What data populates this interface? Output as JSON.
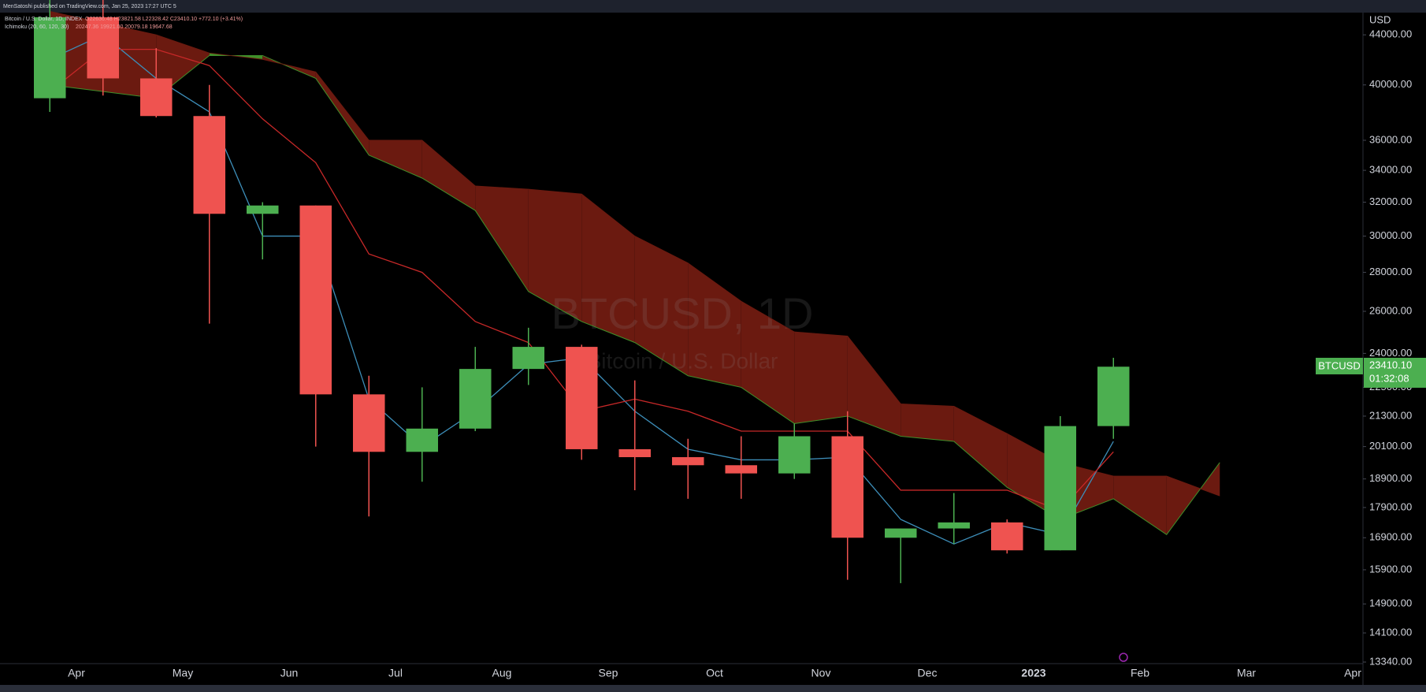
{
  "header": {
    "published": "MenSatoshi published on TradingView.com, Jan 25, 2023 17:27 UTC 5"
  },
  "chart_data": {
    "type": "candlestick",
    "legend": {
      "symbol": "Bitcoin / U.S. Dollar, 1D, INDEX",
      "ohlc": "O22636.48 H23821.58 L22328.42 C23410.10 +772.10 (+3.41%)",
      "indicator": "Ichimoku (20, 60, 120, 30)",
      "indicator_values": "20247.36 19921.00 20079.18 19647.68"
    },
    "watermark": {
      "title": "BTCUSD, 1D",
      "subtitle": "Bitcoin / U.S. Dollar"
    },
    "y_axis_label": "USD",
    "log_scale": true,
    "grid": false,
    "ylim": [
      13300,
      45900
    ],
    "yticks": [
      {
        "value": 44000,
        "label": "44000.00"
      },
      {
        "value": 40000,
        "label": "40000.00"
      },
      {
        "value": 36000,
        "label": "36000.00"
      },
      {
        "value": 34000,
        "label": "34000.00"
      },
      {
        "value": 32000,
        "label": "32000.00"
      },
      {
        "value": 30000,
        "label": "30000.00"
      },
      {
        "value": 28000,
        "label": "28000.00"
      },
      {
        "value": 26000,
        "label": "26000.00"
      },
      {
        "value": 24000,
        "label": "24000.00"
      },
      {
        "value": 22500,
        "label": "22500.00"
      },
      {
        "value": 21300,
        "label": "21300.00"
      },
      {
        "value": 20100,
        "label": "20100.00"
      },
      {
        "value": 18900,
        "label": "18900.00"
      },
      {
        "value": 17900,
        "label": "17900.00"
      },
      {
        "value": 16900,
        "label": "16900.00"
      },
      {
        "value": 15900,
        "label": "15900.00"
      },
      {
        "value": 14900,
        "label": "14900.00"
      },
      {
        "value": 14100,
        "label": "14100.00"
      },
      {
        "value": 13340,
        "label": "13340.00"
      }
    ],
    "categories": [
      null,
      "Apr",
      null,
      "May",
      null,
      "Jun",
      null,
      "Jul",
      null,
      "Aug",
      null,
      "Sep",
      null,
      "Oct",
      null,
      "Nov",
      null,
      "Dec",
      null,
      "2023",
      null,
      "Feb",
      null,
      "Mar",
      null,
      "Apr"
    ],
    "open": [
      39000,
      45500,
      40500,
      37700,
      31300,
      31800,
      22200,
      19900,
      20800,
      23300,
      24300,
      20000,
      19700,
      19400,
      19100,
      20500,
      16900,
      17200,
      17400,
      16500,
      20900,
      null,
      null,
      null,
      null,
      null
    ],
    "high": [
      48000,
      47400,
      42900,
      40000,
      32000,
      31800,
      23000,
      22500,
      24300,
      25200,
      24400,
      22800,
      20400,
      20500,
      21000,
      21500,
      17200,
      18400,
      17500,
      21300,
      23800,
      null,
      null,
      null,
      null,
      null
    ],
    "low": [
      38000,
      39200,
      37600,
      25400,
      28700,
      20100,
      17600,
      18800,
      20700,
      22600,
      19600,
      18500,
      18200,
      18200,
      18900,
      15600,
      15500,
      16700,
      16400,
      16500,
      20400,
      null,
      null,
      null,
      null,
      null
    ],
    "close": [
      45500,
      40500,
      37700,
      31300,
      31800,
      22200,
      19900,
      20800,
      23300,
      24300,
      20000,
      19700,
      19400,
      19100,
      20500,
      16900,
      17200,
      17400,
      16500,
      20900,
      23400,
      null,
      null,
      null,
      null,
      null
    ],
    "ichimoku": {
      "conversion": [
        42000,
        44000,
        40500,
        38000,
        30000,
        30000,
        22000,
        20100,
        21500,
        23500,
        23800,
        21500,
        20000,
        19600,
        19600,
        19700,
        17500,
        16700,
        17400,
        17000,
        20300,
        null,
        null,
        null,
        null,
        null
      ],
      "base": [
        39500,
        42800,
        42800,
        41500,
        37500,
        34500,
        29000,
        28000,
        25500,
        24500,
        21500,
        22000,
        21500,
        20700,
        20700,
        20700,
        18500,
        18500,
        18500,
        17800,
        19900,
        null,
        null,
        null,
        null,
        null
      ],
      "span_a": [
        40000,
        39500,
        39000,
        42300,
        42300,
        40500,
        35000,
        33500,
        31500,
        27000,
        25500,
        24500,
        23000,
        22500,
        21000,
        21300,
        20500,
        20300,
        18600,
        17500,
        18200,
        17000,
        19500,
        null,
        null,
        null
      ],
      "span_b": [
        46000,
        45000,
        44000,
        42500,
        42000,
        41000,
        36000,
        36000,
        33000,
        32800,
        32500,
        30000,
        28500,
        26500,
        25000,
        24800,
        21800,
        21700,
        20600,
        19500,
        19000,
        19000,
        18300,
        null,
        null,
        null
      ]
    },
    "up_color": "#4caf50",
    "down_color": "#ef5350",
    "conversion_color": "#3d8eb9",
    "base_color": "#c62828",
    "cloud_bear_color": "#6b1a10",
    "cloud_bull_color": "#3f8f2a",
    "price_tag": {
      "symbol": "BTCUSD",
      "price": {
        "value": 23410.1,
        "label": "23410.10"
      },
      "countdown": "01:32:08"
    }
  }
}
